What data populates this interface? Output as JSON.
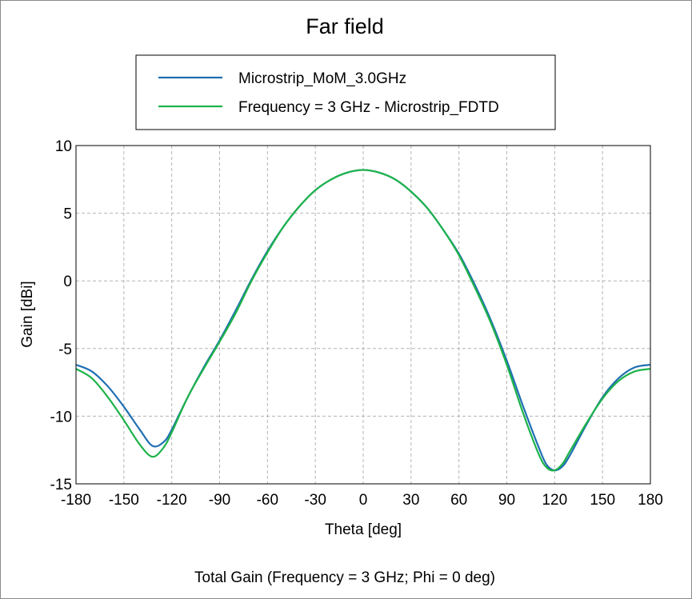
{
  "chart_data": {
    "type": "line",
    "title": "Far field",
    "xlabel": "Theta [deg]",
    "ylabel": "Gain [dBi]",
    "caption": "Total Gain (Frequency = 3 GHz; Phi = 0 deg)",
    "xlim": [
      -180,
      180
    ],
    "ylim": [
      -15,
      10
    ],
    "xticks": [
      -180,
      -150,
      -120,
      -90,
      -60,
      -30,
      0,
      30,
      60,
      90,
      120,
      150,
      180
    ],
    "yticks": [
      -15,
      -10,
      -5,
      0,
      5,
      10
    ],
    "grid": true,
    "legend_position": "top-center",
    "series": [
      {
        "name": "Microstrip_MoM_3.0GHz",
        "color": "#1f6fb2",
        "x": [
          -180,
          -170,
          -160,
          -150,
          -140,
          -132,
          -125,
          -120,
          -110,
          -100,
          -90,
          -80,
          -70,
          -60,
          -50,
          -40,
          -30,
          -20,
          -10,
          0,
          10,
          20,
          30,
          40,
          50,
          60,
          70,
          80,
          90,
          100,
          110,
          115,
          120,
          125,
          130,
          140,
          150,
          160,
          170,
          180
        ],
        "y": [
          -6.2,
          -6.7,
          -7.8,
          -9.3,
          -11.0,
          -12.2,
          -11.9,
          -11.0,
          -8.6,
          -6.4,
          -4.4,
          -2.2,
          0.1,
          2.2,
          4.0,
          5.5,
          6.7,
          7.5,
          8.0,
          8.2,
          8.0,
          7.5,
          6.6,
          5.4,
          3.8,
          2.0,
          -0.3,
          -2.9,
          -5.9,
          -9.2,
          -12.3,
          -13.6,
          -14.0,
          -13.7,
          -12.8,
          -10.6,
          -8.6,
          -7.2,
          -6.4,
          -6.2
        ]
      },
      {
        "name": "Frequency = 3 GHz - Microstrip_FDTD",
        "color": "#1db34a",
        "x": [
          -180,
          -170,
          -160,
          -150,
          -140,
          -132,
          -125,
          -120,
          -110,
          -100,
          -90,
          -80,
          -70,
          -60,
          -50,
          -40,
          -30,
          -20,
          -10,
          0,
          10,
          20,
          30,
          40,
          50,
          60,
          70,
          80,
          90,
          100,
          110,
          115,
          120,
          125,
          130,
          140,
          150,
          160,
          170,
          180
        ],
        "y": [
          -6.5,
          -7.2,
          -8.6,
          -10.3,
          -12.1,
          -13.0,
          -12.3,
          -11.2,
          -8.6,
          -6.5,
          -4.5,
          -2.4,
          0.0,
          2.1,
          4.0,
          5.5,
          6.7,
          7.5,
          8.0,
          8.2,
          8.0,
          7.5,
          6.6,
          5.4,
          3.8,
          1.9,
          -0.5,
          -3.1,
          -6.2,
          -9.7,
          -12.8,
          -13.8,
          -14.0,
          -13.5,
          -12.5,
          -10.5,
          -8.7,
          -7.4,
          -6.7,
          -6.5
        ]
      }
    ]
  }
}
